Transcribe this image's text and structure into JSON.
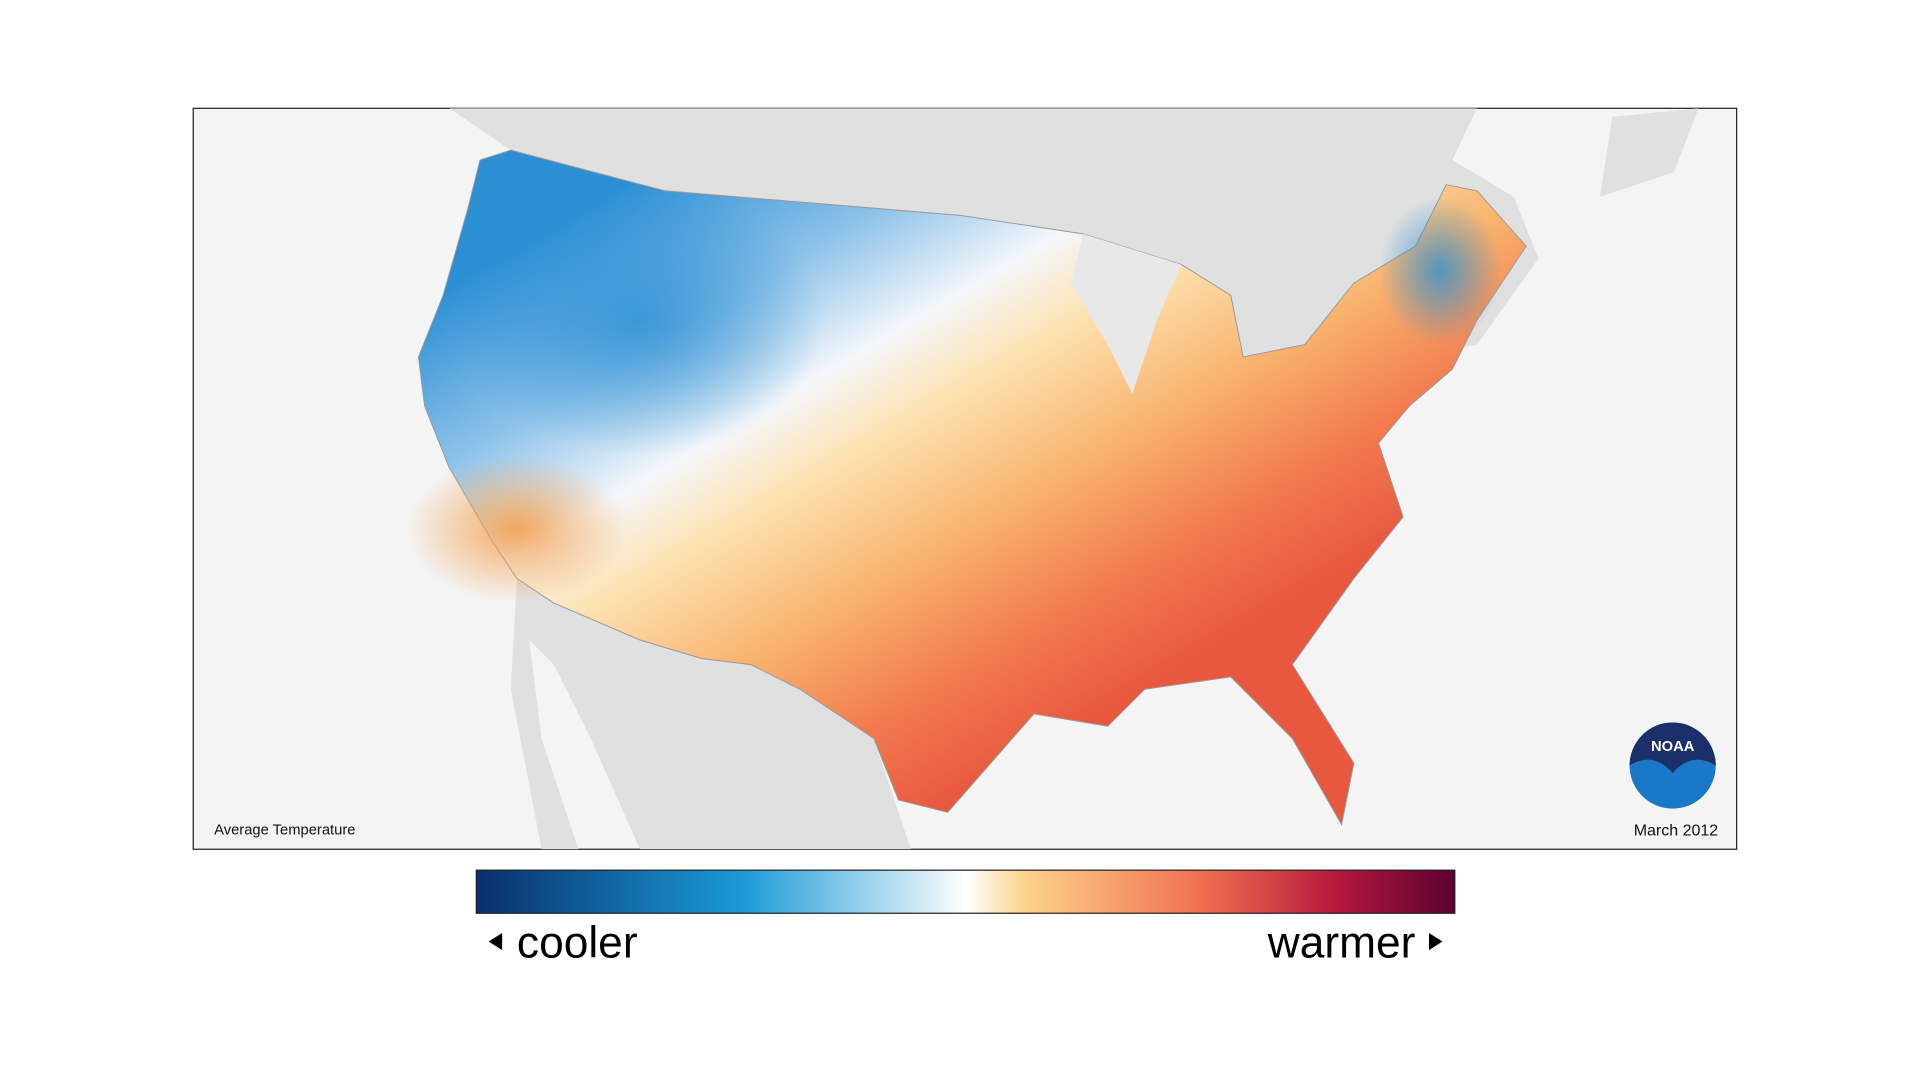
{
  "map": {
    "label": "Average Temperature",
    "date": "March 2012",
    "logo": "NOAA"
  },
  "legend": {
    "low_label": "cooler",
    "high_label": "warmer"
  }
}
